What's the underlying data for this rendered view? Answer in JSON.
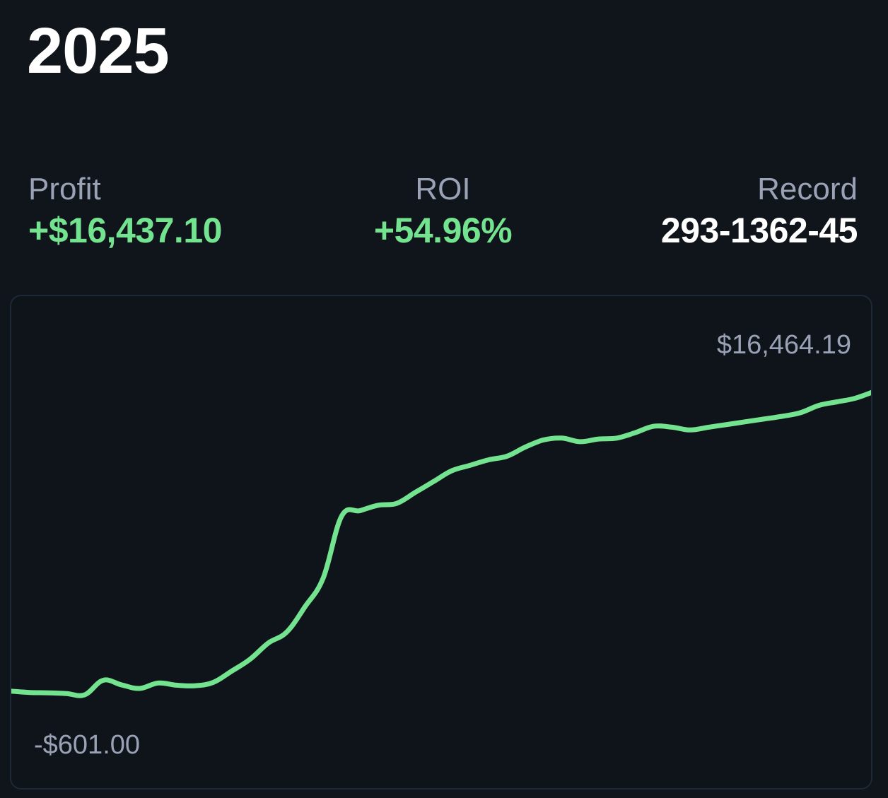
{
  "header": {
    "year": "2025"
  },
  "stats": {
    "profit": {
      "label": "Profit",
      "value": "+$16,437.10"
    },
    "roi": {
      "label": "ROI",
      "value": "+54.96%"
    },
    "record": {
      "label": "Record",
      "value": "293-1362-45"
    }
  },
  "colors": {
    "background": "#10141b",
    "positive": "#73e38f",
    "muted": "#9aa2b5",
    "line": "#73e38f"
  },
  "chart_data": {
    "type": "line",
    "max_label": "$16,464.19",
    "min_label": "-$601.00",
    "ylim": [
      -601.0,
      16464.19
    ],
    "series": [
      {
        "values": [
          -50,
          -120,
          -140,
          -180,
          -250,
          550,
          300,
          100,
          400,
          280,
          250,
          430,
          1050,
          1700,
          2600,
          3200,
          4600,
          6200,
          9600,
          9900,
          10200,
          10300,
          10900,
          11500,
          12100,
          12400,
          12700,
          12900,
          13400,
          13800,
          13900,
          13700,
          13850,
          13900,
          14200,
          14550,
          14500,
          14350,
          14500,
          14650,
          14800,
          14950,
          15100,
          15300,
          15700,
          15900,
          16100,
          16464.19
        ]
      }
    ]
  }
}
